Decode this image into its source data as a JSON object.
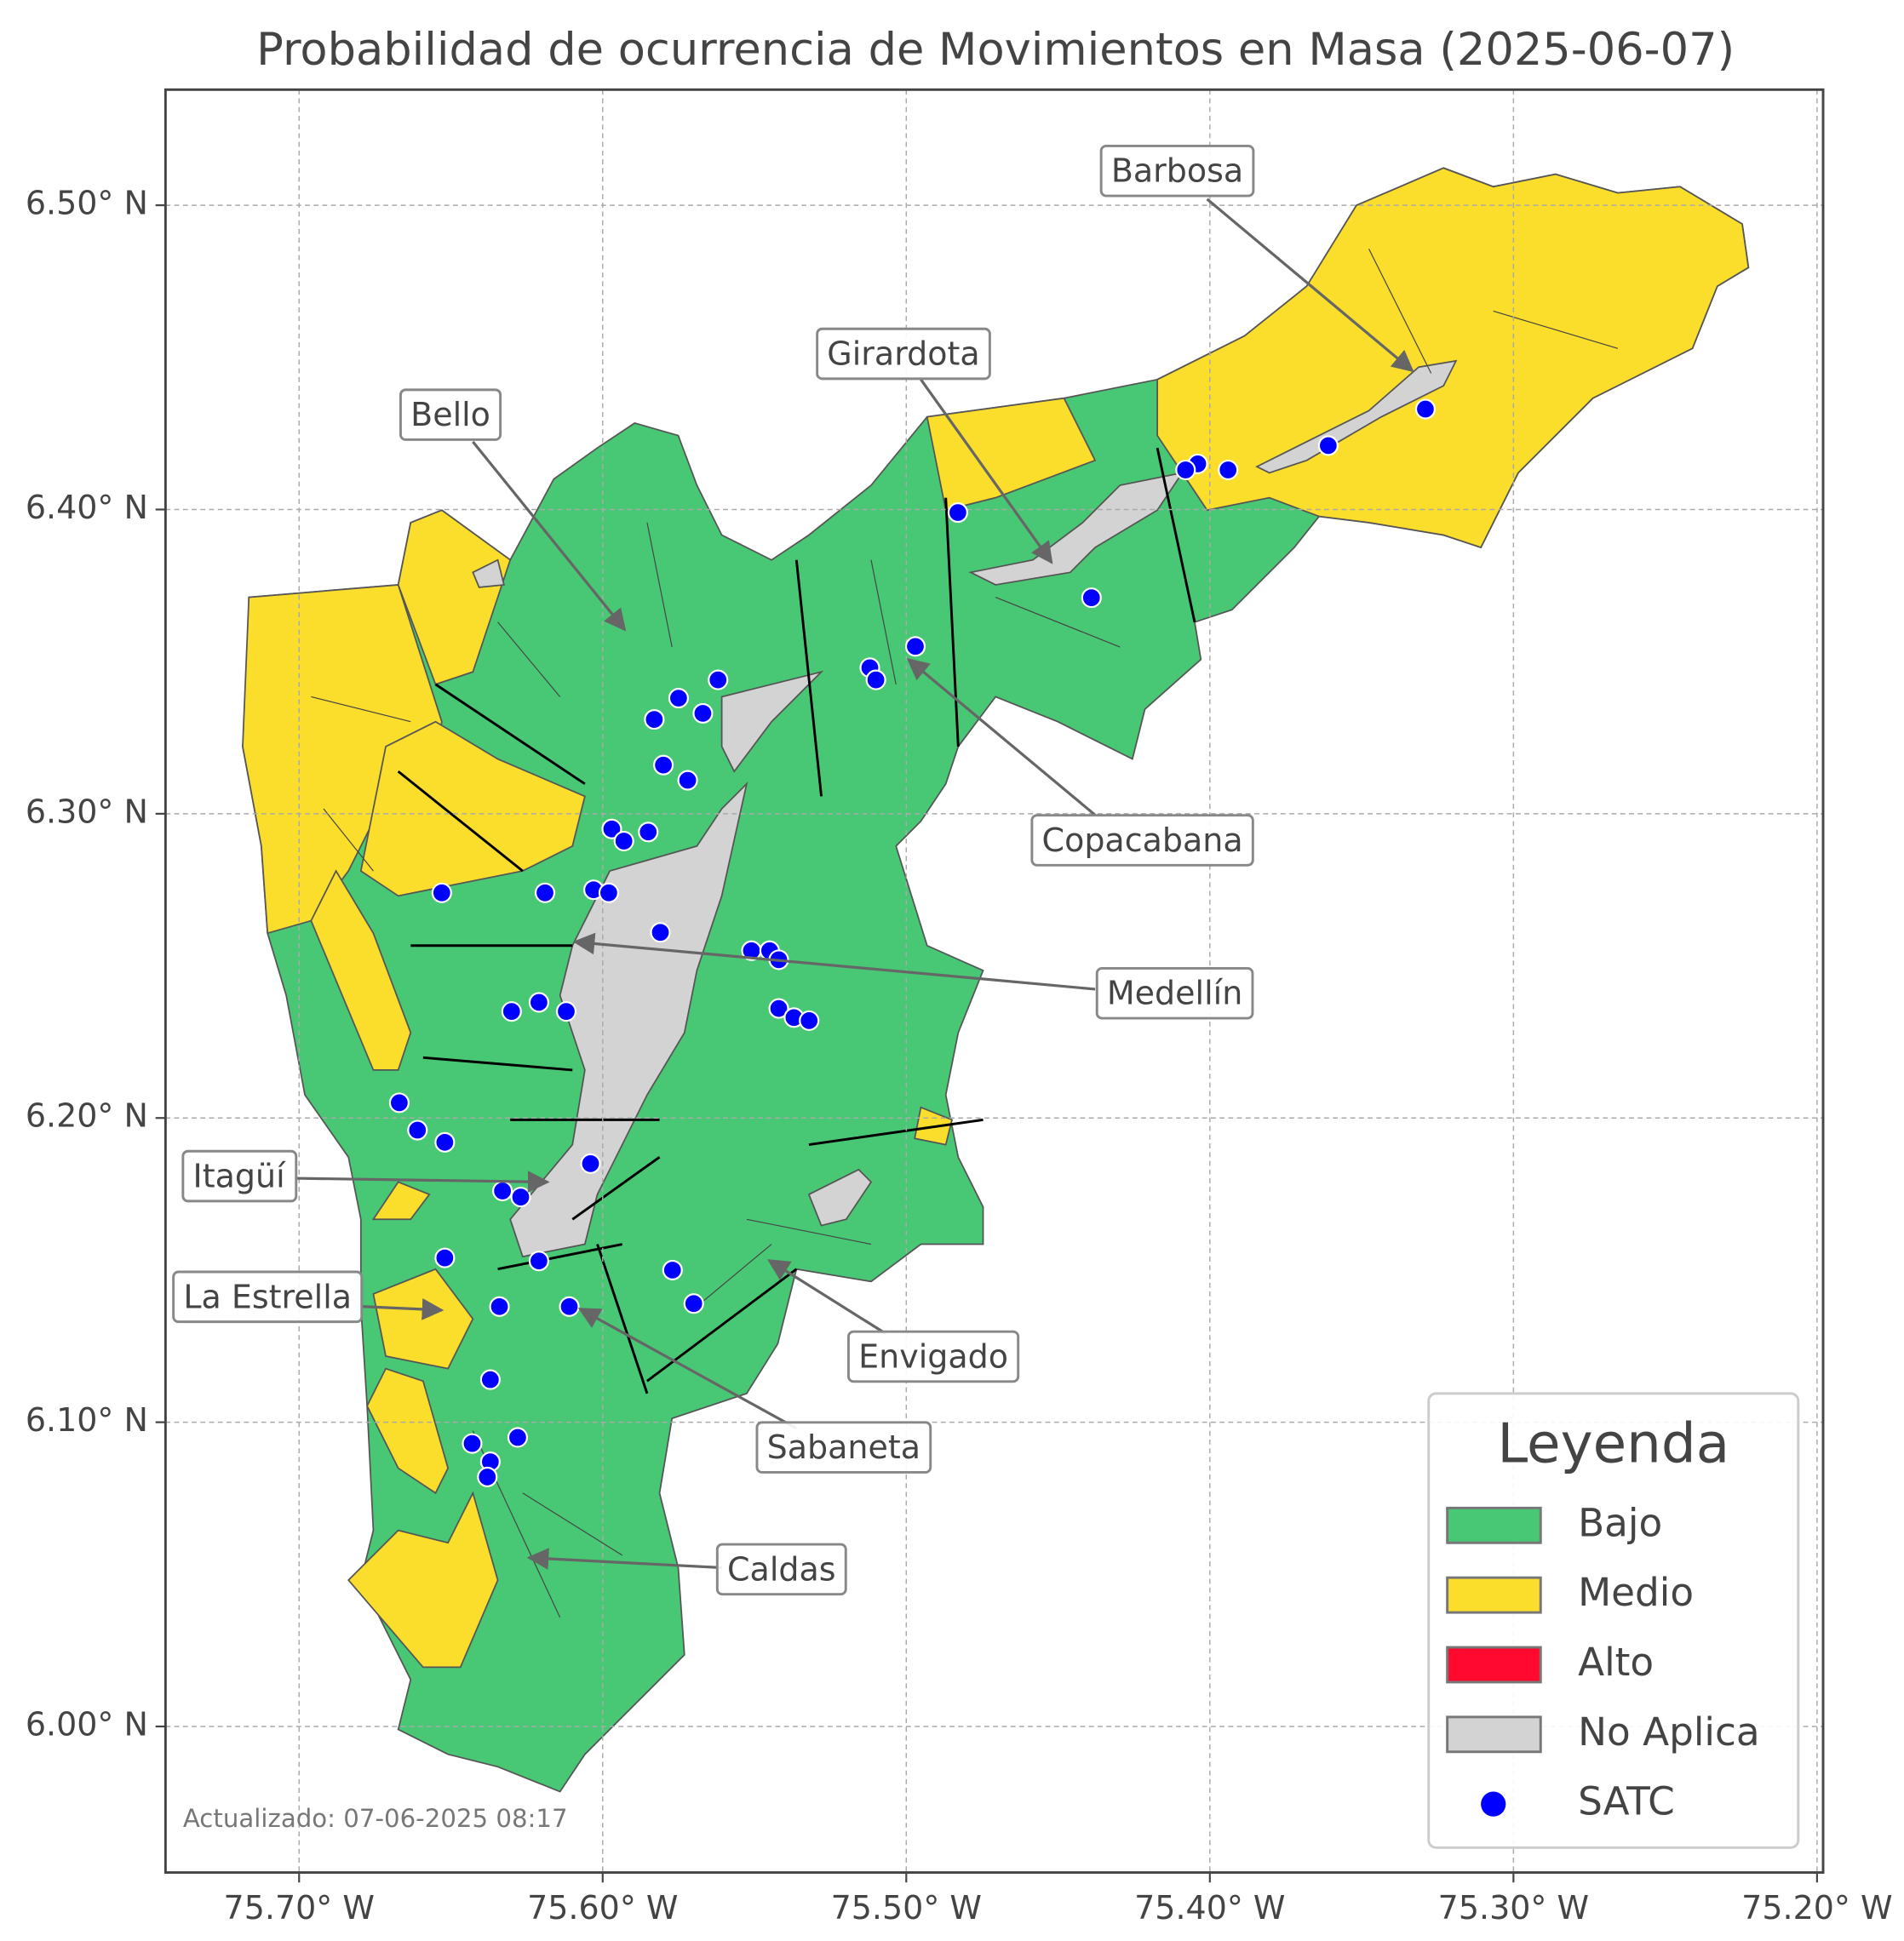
{
  "chart_data": {
    "type": "map",
    "title": "Probabilidad de ocurrencia de Movimientos en Masa (2025-06-07)",
    "xlim": [
      -75.744,
      -75.198
    ],
    "ylim": [
      5.952,
      6.538
    ],
    "xticks": [
      {
        "value": -75.7,
        "label": "75.70° W"
      },
      {
        "value": -75.6,
        "label": "75.60° W"
      },
      {
        "value": -75.5,
        "label": "75.50° W"
      },
      {
        "value": -75.4,
        "label": "75.40° W"
      },
      {
        "value": -75.3,
        "label": "75.30° W"
      },
      {
        "value": -75.2,
        "label": "75.20° W"
      }
    ],
    "yticks": [
      {
        "value": 6.0,
        "label": "6.00° N"
      },
      {
        "value": 6.1,
        "label": "6.10° N"
      },
      {
        "value": 6.2,
        "label": "6.20° N"
      },
      {
        "value": 6.3,
        "label": "6.30° N"
      },
      {
        "value": 6.4,
        "label": "6.40° N"
      },
      {
        "value": 6.5,
        "label": "6.50° N"
      }
    ],
    "grid": true,
    "legend_position": "lower right",
    "legend": {
      "title": "Leyenda",
      "entries": [
        {
          "name": "Bajo",
          "color": "#48c774"
        },
        {
          "name": "Medio",
          "color": "#fbdd2b"
        },
        {
          "name": "Alto",
          "color": "#ff0a2e"
        },
        {
          "name": "No Aplica",
          "color": "#d3d3d3"
        }
      ]
    },
    "series": [
      {
        "name": "SATC",
        "color": "#0000ff",
        "x": [
          -75.329,
          -75.361,
          -75.394,
          -75.404,
          -75.408,
          -75.483,
          -75.439,
          -75.497,
          -75.512,
          -75.51,
          -75.562,
          -75.575,
          -75.567,
          -75.583,
          -75.58,
          -75.572,
          -75.597,
          -75.585,
          -75.593,
          -75.653,
          -75.619,
          -75.603,
          -75.598,
          -75.581,
          -75.551,
          -75.545,
          -75.542,
          -75.542,
          -75.537,
          -75.532,
          -75.621,
          -75.63,
          -75.612,
          -75.667,
          -75.661,
          -75.652,
          -75.604,
          -75.633,
          -75.627,
          -75.652,
          -75.621,
          -75.577,
          -75.57,
          -75.634,
          -75.611,
          -75.637,
          -75.643,
          -75.628,
          -75.637,
          -75.638
        ],
        "values": [
          6.433,
          6.421,
          6.413,
          6.415,
          6.413,
          6.399,
          6.371,
          6.355,
          6.348,
          6.344,
          6.344,
          6.338,
          6.333,
          6.331,
          6.316,
          6.311,
          6.295,
          6.294,
          6.291,
          6.274,
          6.274,
          6.275,
          6.274,
          6.261,
          6.255,
          6.255,
          6.252,
          6.236,
          6.233,
          6.232,
          6.238,
          6.235,
          6.235,
          6.205,
          6.196,
          6.192,
          6.185,
          6.176,
          6.174,
          6.154,
          6.153,
          6.15,
          6.139,
          6.138,
          6.138,
          6.114,
          6.093,
          6.095,
          6.087,
          6.082
        ]
      }
    ],
    "annotations": [
      "Barbosa",
      "Girardota",
      "Bello",
      "Copacabana",
      "Medellín",
      "Itagüí",
      "La Estrella",
      "Envigado",
      "Sabaneta",
      "Caldas"
    ],
    "footnote": "Actualizado: 07-06-2025 08:17"
  }
}
